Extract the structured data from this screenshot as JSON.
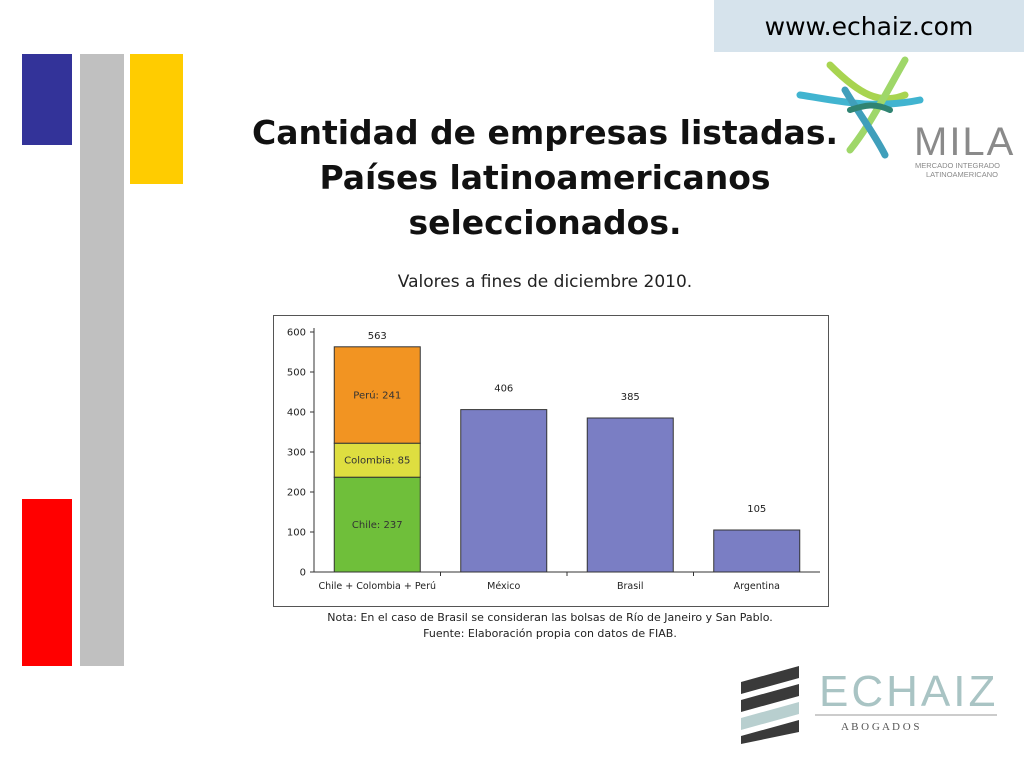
{
  "header": {
    "url": "www.echaiz.com"
  },
  "slide": {
    "title_lines": [
      "Cantidad de empresas listadas.",
      "Países latinoamericanos",
      "seleccionados."
    ],
    "subtitle": "Valores a fines de diciembre 2010.",
    "note": "Nota: En el caso de Brasil se consideran las bolsas de Río de Janeiro y San Pablo.",
    "source": "Fuente: Elaboración propia con datos de FIAB."
  },
  "logos": {
    "mila": {
      "name": "MILA",
      "tagline_1": "MERCADO INTEGRADO",
      "tagline_2": "LATINOAMERICANO"
    },
    "echaiz": {
      "name": "ECHAIZ",
      "tagline": "A B O G A D O S"
    }
  },
  "colors": {
    "deco_blue": "#333399",
    "deco_gray": "#c0c0c0",
    "deco_yellow": "#ffcc00",
    "deco_red": "#ff0000",
    "bar_purple": "#7a7ec4",
    "stack_chile": "#6fbf3a",
    "stack_colombia": "#dede40",
    "stack_peru": "#f29422"
  },
  "chart_data": {
    "type": "bar",
    "stacked": true,
    "categories": [
      "Chile + Colombia + Perú",
      "México",
      "Brasil",
      "Argentina"
    ],
    "series": [
      {
        "name": "Chile",
        "label": "Chile: 237",
        "values": [
          237,
          null,
          null,
          null
        ]
      },
      {
        "name": "Colombia",
        "label": "Colombia: 85",
        "values": [
          85,
          null,
          null,
          null
        ]
      },
      {
        "name": "Perú",
        "label": "Perú: 241",
        "values": [
          241,
          null,
          null,
          null
        ]
      },
      {
        "name": "",
        "values": [
          null,
          406,
          385,
          105
        ]
      }
    ],
    "totals": [
      "563",
      "406",
      "385",
      "105"
    ],
    "yticks": [
      "0",
      "100",
      "200",
      "300",
      "400",
      "500",
      "600"
    ],
    "ylim": [
      0,
      600
    ],
    "legend": "none",
    "grid": false
  }
}
